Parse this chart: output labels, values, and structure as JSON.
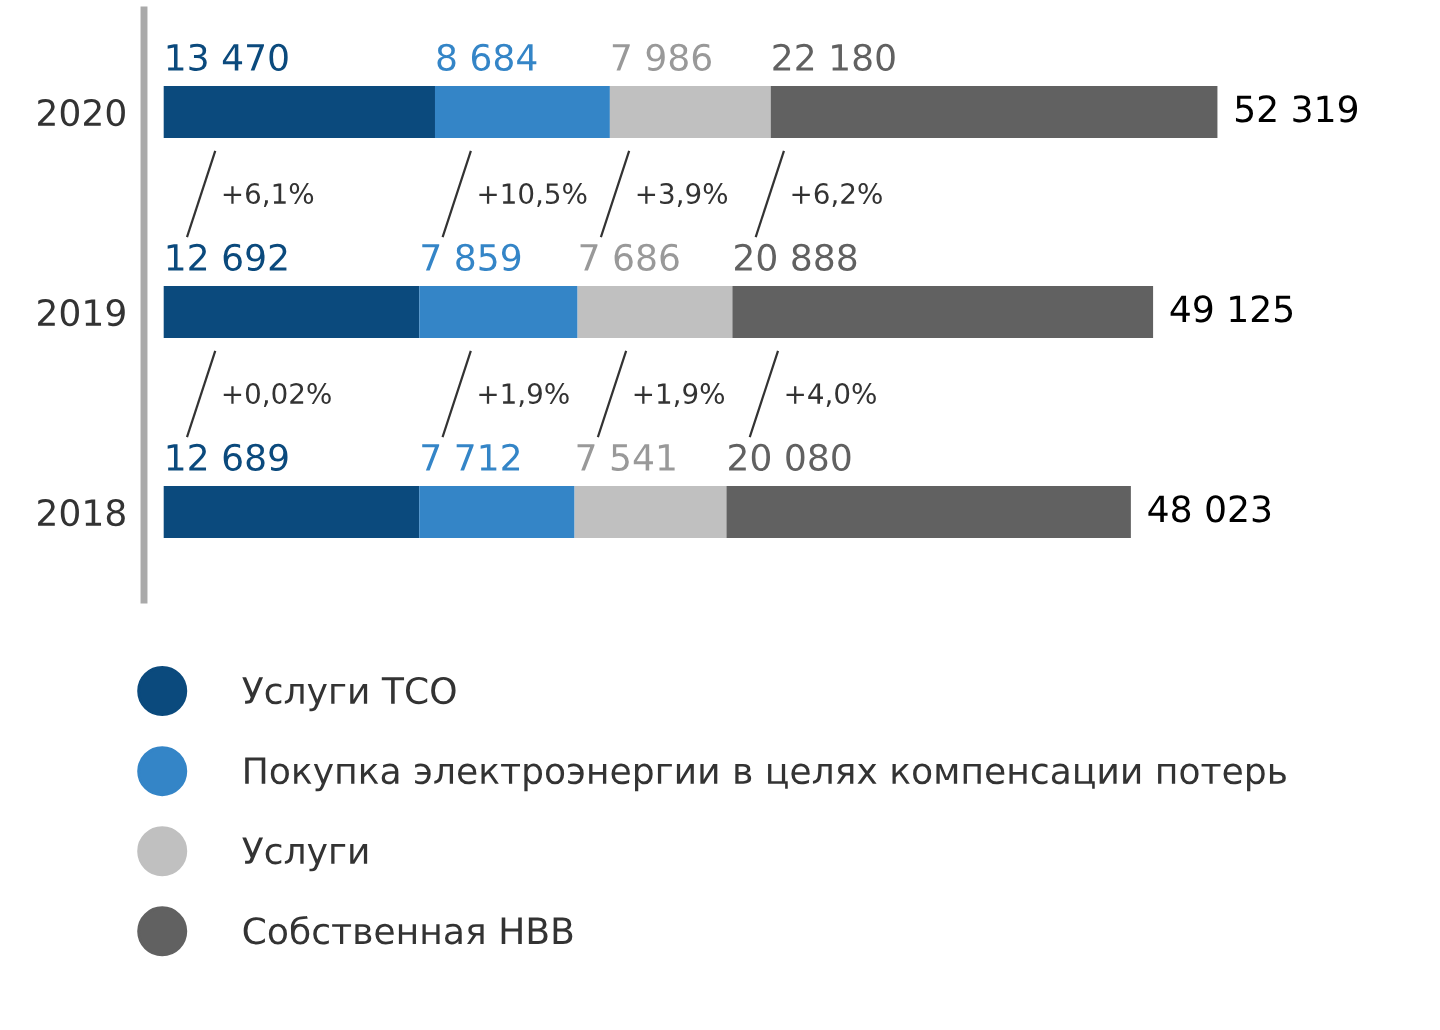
{
  "chart_data": {
    "type": "bar",
    "orientation": "horizontal",
    "stacked": true,
    "legend": "bottom",
    "grid": false,
    "categories": [
      "2020",
      "2019",
      "2018"
    ],
    "series": [
      {
        "name": "Услуги ТСО",
        "color": "#0b4a7d",
        "values": [
          13470,
          12692,
          12689
        ],
        "value_labels": [
          "13 470",
          "12 692",
          "12 689"
        ]
      },
      {
        "name": "Покупка электроэнергии в целях компенсации потерь",
        "color": "#3485c7",
        "values": [
          8684,
          7859,
          7712
        ],
        "value_labels": [
          "8 684",
          "7 859",
          "7 712"
        ]
      },
      {
        "name": "Услуги",
        "color": "#c0c0c0",
        "values": [
          7986,
          7686,
          7541
        ],
        "value_labels": [
          "7 986",
          "7 686",
          "7 541"
        ]
      },
      {
        "name": "Собственная НВВ",
        "color": "#616161",
        "values": [
          22180,
          20888,
          20080
        ],
        "value_labels": [
          "22 180",
          "20 888",
          "20 080"
        ]
      }
    ],
    "totals": [
      "52 319",
      "49 125",
      "48 023"
    ],
    "annotations": [
      "+6,1%",
      "+10,5%",
      "+3,9%",
      "+6,2%",
      "+0,02%",
      "+1,9%",
      "+1,9%",
      "+4,0%"
    ]
  }
}
